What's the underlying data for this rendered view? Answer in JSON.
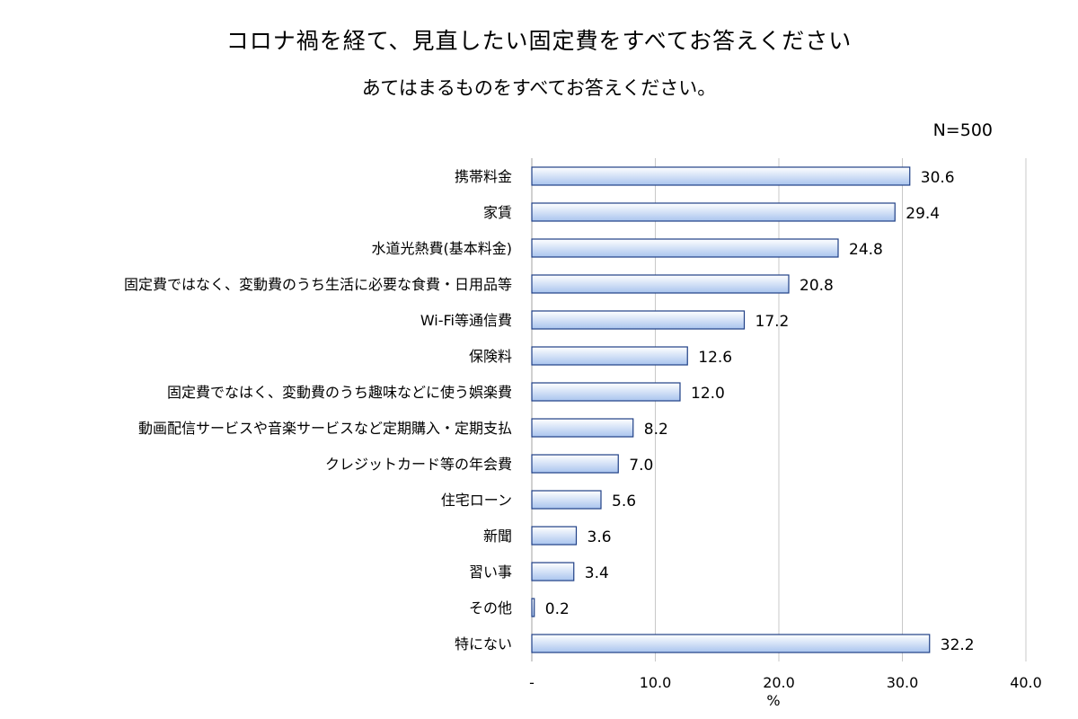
{
  "chart_data": {
    "type": "bar",
    "orientation": "horizontal",
    "title": "コロナ禍を経て、見直したい固定費をすべてお答えください",
    "subtitle": "あてはまるものをすべてお答えください。",
    "note": "N=500",
    "categories": [
      "携帯料金",
      "家賃",
      "水道光熱費(基本料金)",
      "固定費ではなく、変動費のうち生活に必要な食費・日用品等",
      "Wi-Fi等通信費",
      "保険料",
      "固定費でなはく、変動費のうち趣味などに使う娯楽費",
      "動画配信サービスや音楽サービスなど定期購入・定期支払",
      "クレジットカード等の年会費",
      "住宅ローン",
      "新聞",
      "習い事",
      "その他",
      "特にない"
    ],
    "values": [
      30.6,
      29.4,
      24.8,
      20.8,
      17.2,
      12.6,
      12.0,
      8.2,
      7.0,
      5.6,
      3.6,
      3.4,
      0.2,
      32.2
    ],
    "value_labels": [
      "30.6",
      "29.4",
      "24.8",
      "20.8",
      "17.2",
      "12.6",
      "12.0",
      "8.2",
      "7.0",
      "5.6",
      "3.6",
      "3.4",
      "0.2",
      "32.2"
    ],
    "xlabel": "%",
    "xlim": [
      0,
      40
    ],
    "xticks": [
      0,
      10,
      20,
      30,
      40
    ],
    "xtick_labels": [
      "-",
      "10.0",
      "20.0",
      "30.0",
      "40.0"
    ],
    "grid": true,
    "colors": {
      "bar_fill_light": "#ffffff",
      "bar_fill_dark": "#a9c4ee",
      "bar_stroke": "#1f3f86",
      "grid": "#c8c8c8",
      "axis": "#a0a0a0"
    }
  }
}
